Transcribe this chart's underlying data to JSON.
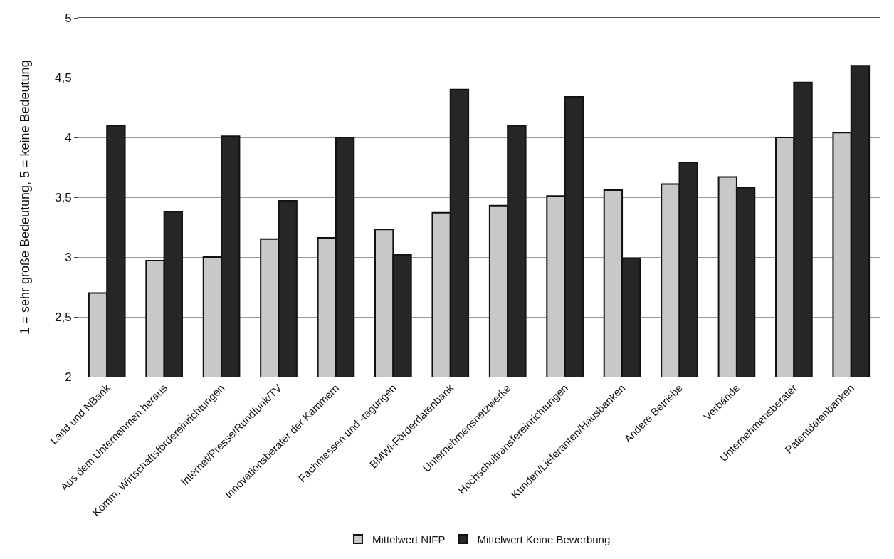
{
  "chart_data": {
    "type": "bar",
    "ylabel": "1 = sehr große Bedeutung, 5 = keine Bedeutung",
    "categories": [
      "Land und NBank",
      "Aus dem Unternehmen heraus",
      "Komm. Wirtschaftsfördereinrichtungen",
      "Internet/Presse/Rundfunk/TV",
      "Innovationsberater der Kammern",
      "Fachmessen und -tagungen",
      "BMWi-Förderdatenbank",
      "Unternehmensnetzwerke",
      "Hochschultransfereinrichtungen",
      "Kunden/Lieferanten/Hausbanken",
      "Andere Betriebe",
      "Verbände",
      "Unternehmensberater",
      "Patentdatenbanken"
    ],
    "series": [
      {
        "name": "Mittelwert NIFP",
        "color": "#c8c8c8",
        "values": [
          2.7,
          2.97,
          3.0,
          3.15,
          3.16,
          3.23,
          3.37,
          3.43,
          3.51,
          3.56,
          3.61,
          3.67,
          4.0,
          4.04
        ]
      },
      {
        "name": "Mittelwert Keine Bewerbung",
        "color": "#262626",
        "values": [
          4.1,
          3.38,
          4.01,
          3.47,
          4.0,
          3.02,
          4.4,
          4.1,
          4.34,
          2.99,
          3.79,
          3.58,
          4.46,
          4.6
        ]
      }
    ],
    "ylim": [
      2,
      5
    ],
    "yticks": [
      2,
      {
        "value": 2.5,
        "label": "2,5"
      },
      3,
      {
        "value": 3.5,
        "label": "3,5"
      },
      4,
      {
        "value": 4.5,
        "label": "4,5"
      },
      5
    ],
    "grid": "y",
    "legend": "bottom"
  }
}
